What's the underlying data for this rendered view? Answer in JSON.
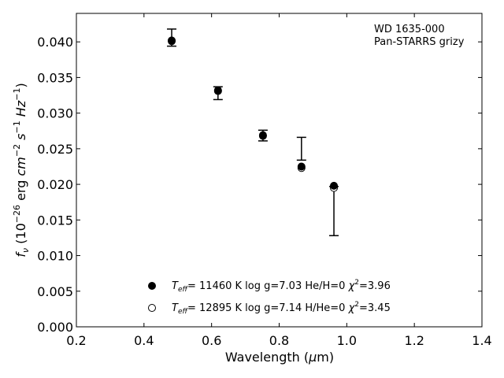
{
  "chart_data": {
    "type": "scatter",
    "title": "",
    "xlabel": "Wavelength (μm)",
    "ylabel": "fν (10⁻²⁶ erg cm⁻² s⁻¹ Hz⁻¹)",
    "xlim": [
      0.2,
      1.4
    ],
    "ylim": [
      0.0,
      0.044
    ],
    "x_ticks": [
      "0.2",
      "0.4",
      "0.6",
      "0.8",
      "1.0",
      "1.2",
      "1.4"
    ],
    "y_ticks": [
      "0.000",
      "0.005",
      "0.010",
      "0.015",
      "0.020",
      "0.025",
      "0.030",
      "0.035",
      "0.040"
    ],
    "grid": false,
    "annotation": [
      "WD 1635-000",
      "Pan-STARRS grizy"
    ],
    "observed": {
      "x": [
        0.482,
        0.619,
        0.752,
        0.866,
        0.962
      ],
      "y_high": [
        0.0418,
        0.0337,
        0.0276,
        0.0266,
        0.0197
      ],
      "y_low": [
        0.0394,
        0.0319,
        0.0261,
        0.0234,
        0.0128
      ]
    },
    "series": [
      {
        "marker": "filled-circle",
        "legend": "T_eff= 11460 K  log g=7.03  He/H=0  χ²=3.96",
        "x": [
          0.482,
          0.619,
          0.752,
          0.866,
          0.962
        ],
        "y": [
          0.0402,
          0.0332,
          0.0269,
          0.0225,
          0.0198
        ]
      },
      {
        "marker": "open-circle",
        "legend": "T_eff= 12895 K  log g=7.14  H/He=0  χ²=3.45",
        "x": [
          0.482,
          0.619,
          0.752,
          0.866,
          0.962
        ],
        "y": [
          0.0401,
          0.0331,
          0.0268,
          0.0223,
          0.0195
        ]
      }
    ],
    "legend_labels": {
      "teff": "T",
      "eff_sub": "eff",
      "row1_teff": "= 11460 K  log g=7.03  He/H=0  ",
      "row1_chi": "=3.96",
      "row2_teff": "= 12895 K  log g=7.14  H/He=0  ",
      "row2_chi": "=3.45",
      "chi": "χ",
      "chi_sup": "2"
    },
    "axis_text": {
      "x_main": "Wavelength (",
      "x_mu": "μ",
      "x_unit": "m)",
      "y_f": "f",
      "y_nu": "ν",
      "y_open": " (10",
      "y_exp1": "−26",
      "y_erg": " erg ",
      "y_cm": "cm",
      "y_exp2": "−2",
      "y_s": " s",
      "y_exp3": "−1",
      "y_hz": " Hz",
      "y_exp4": "−1",
      "y_close": ")"
    },
    "legend_placement": "lower-center",
    "colors": {
      "marker": "#000000",
      "axes": "#000000"
    }
  }
}
